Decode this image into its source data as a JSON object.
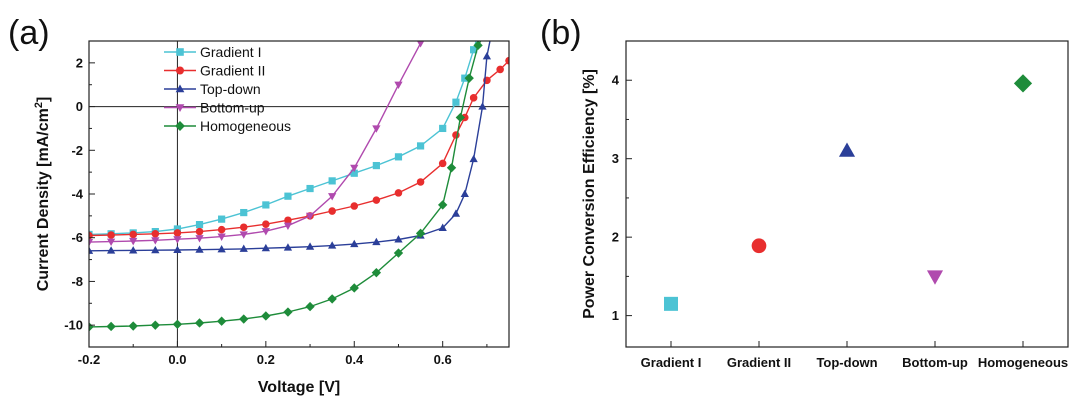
{
  "chart_data": [
    {
      "panel": "(a)",
      "type": "line",
      "xlabel": "Voltage [V]",
      "ylabel": "Current Density [mA/cm",
      "ylabel_sup": "2",
      "ylabel_tail": "]",
      "xlim": [
        -0.2,
        0.75
      ],
      "ylim": [
        -11,
        3
      ],
      "xticks": [
        -0.2,
        0.0,
        0.2,
        0.4,
        0.6
      ],
      "xtick_labels": [
        "-0.2",
        "0.0",
        "0.2",
        "0.4",
        "0.6"
      ],
      "yticks": [
        -10,
        -8,
        -6,
        -4,
        -2,
        0,
        2
      ],
      "ytick_labels": [
        "-10",
        "-8",
        "-6",
        "-4",
        "-2",
        "0",
        "2"
      ],
      "legend_position": "top-center",
      "series": [
        {
          "name": "Gradient I",
          "color": "#4cc3d4",
          "marker": "square",
          "x": [
            -0.2,
            -0.15,
            -0.1,
            -0.05,
            0.0,
            0.05,
            0.1,
            0.15,
            0.2,
            0.25,
            0.3,
            0.35,
            0.4,
            0.45,
            0.5,
            0.55,
            0.6,
            0.63,
            0.65,
            0.67,
            0.68
          ],
          "y": [
            -5.85,
            -5.82,
            -5.78,
            -5.72,
            -5.6,
            -5.4,
            -5.15,
            -4.85,
            -4.5,
            -4.1,
            -3.75,
            -3.4,
            -3.05,
            -2.7,
            -2.3,
            -1.8,
            -1.0,
            0.2,
            1.3,
            2.6,
            3.3
          ]
        },
        {
          "name": "Gradient II",
          "color": "#e82e2e",
          "marker": "circle",
          "x": [
            -0.2,
            -0.15,
            -0.1,
            -0.05,
            0.0,
            0.05,
            0.1,
            0.15,
            0.2,
            0.25,
            0.3,
            0.35,
            0.4,
            0.45,
            0.5,
            0.55,
            0.6,
            0.63,
            0.65,
            0.67,
            0.7,
            0.73,
            0.75
          ],
          "y": [
            -5.9,
            -5.88,
            -5.85,
            -5.82,
            -5.78,
            -5.72,
            -5.63,
            -5.52,
            -5.38,
            -5.2,
            -5.0,
            -4.78,
            -4.55,
            -4.28,
            -3.95,
            -3.45,
            -2.6,
            -1.3,
            -0.5,
            0.4,
            1.2,
            1.7,
            2.1
          ]
        },
        {
          "name": "Top-down",
          "color": "#2b3f99",
          "marker": "triangle-up",
          "x": [
            -0.2,
            -0.15,
            -0.1,
            -0.05,
            0.0,
            0.05,
            0.1,
            0.15,
            0.2,
            0.25,
            0.3,
            0.35,
            0.4,
            0.45,
            0.5,
            0.55,
            0.6,
            0.63,
            0.65,
            0.67,
            0.69,
            0.7,
            0.71
          ],
          "y": [
            -6.6,
            -6.59,
            -6.58,
            -6.57,
            -6.56,
            -6.55,
            -6.53,
            -6.51,
            -6.48,
            -6.45,
            -6.41,
            -6.36,
            -6.29,
            -6.2,
            -6.08,
            -5.9,
            -5.55,
            -4.9,
            -4.0,
            -2.4,
            0.0,
            2.3,
            3.3
          ]
        },
        {
          "name": "Bottom-up",
          "color": "#b04aae",
          "marker": "triangle-down",
          "x": [
            -0.2,
            -0.15,
            -0.1,
            -0.05,
            0.0,
            0.05,
            0.1,
            0.15,
            0.2,
            0.25,
            0.3,
            0.35,
            0.4,
            0.45,
            0.5,
            0.55,
            0.58
          ],
          "y": [
            -6.2,
            -6.18,
            -6.15,
            -6.12,
            -6.07,
            -6.02,
            -5.95,
            -5.85,
            -5.7,
            -5.45,
            -5.0,
            -4.1,
            -2.8,
            -1.0,
            1.0,
            2.9,
            3.5
          ]
        },
        {
          "name": "Homogeneous",
          "color": "#1e8c3a",
          "marker": "diamond",
          "x": [
            -0.2,
            -0.15,
            -0.1,
            -0.05,
            0.0,
            0.05,
            0.1,
            0.15,
            0.2,
            0.25,
            0.3,
            0.35,
            0.4,
            0.45,
            0.5,
            0.55,
            0.6,
            0.62,
            0.64,
            0.66,
            0.68,
            0.7
          ],
          "y": [
            -10.08,
            -10.06,
            -10.04,
            -10.0,
            -9.96,
            -9.9,
            -9.82,
            -9.72,
            -9.58,
            -9.4,
            -9.15,
            -8.8,
            -8.3,
            -7.6,
            -6.7,
            -5.8,
            -4.5,
            -2.8,
            -0.5,
            1.3,
            2.8,
            3.5
          ]
        }
      ]
    },
    {
      "panel": "(b)",
      "type": "scatter",
      "ylabel": "Power Conversion Efficiency [%]",
      "categories": [
        "Gradient I",
        "Gradient II",
        "Top-down",
        "Bottom-up",
        "Homogeneous"
      ],
      "ylim": [
        0.6,
        4.5
      ],
      "yticks": [
        1,
        2,
        3,
        4
      ],
      "ytick_labels": [
        "1",
        "2",
        "3",
        "4"
      ],
      "points": [
        {
          "category": "Gradient I",
          "value": 1.15,
          "color": "#4cc3d4",
          "marker": "square"
        },
        {
          "category": "Gradient II",
          "value": 1.89,
          "color": "#e82e2e",
          "marker": "circle"
        },
        {
          "category": "Top-down",
          "value": 3.1,
          "color": "#2b3f99",
          "marker": "triangle-up"
        },
        {
          "category": "Bottom-up",
          "value": 1.5,
          "color": "#b04aae",
          "marker": "triangle-down"
        },
        {
          "category": "Homogeneous",
          "value": 3.96,
          "color": "#1e8c3a",
          "marker": "diamond"
        }
      ]
    }
  ]
}
